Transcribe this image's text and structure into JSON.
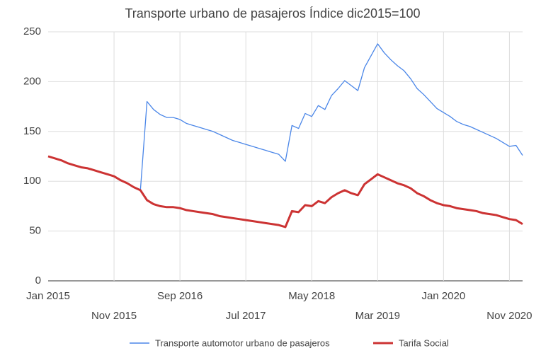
{
  "chart_data": {
    "type": "line",
    "title": "Transporte urbano de pasajeros Índice dic2015=100",
    "x": [
      "Jan 2015",
      "Feb 2015",
      "Mar 2015",
      "Apr 2015",
      "May 2015",
      "Jun 2015",
      "Jul 2015",
      "Aug 2015",
      "Sep 2015",
      "Oct 2015",
      "Nov 2015",
      "Dec 2015",
      "Jan 2016",
      "Feb 2016",
      "Mar 2016",
      "Apr 2016",
      "May 2016",
      "Jun 2016",
      "Jul 2016",
      "Aug 2016",
      "Sep 2016",
      "Oct 2016",
      "Nov 2016",
      "Dec 2016",
      "Jan 2017",
      "Feb 2017",
      "Mar 2017",
      "Apr 2017",
      "May 2017",
      "Jun 2017",
      "Jul 2017",
      "Aug 2017",
      "Sep 2017",
      "Oct 2017",
      "Nov 2017",
      "Dec 2017",
      "Jan 2018",
      "Feb 2018",
      "Mar 2018",
      "Apr 2018",
      "May 2018",
      "Jun 2018",
      "Jul 2018",
      "Aug 2018",
      "Sep 2018",
      "Oct 2018",
      "Nov 2018",
      "Dec 2018",
      "Jan 2019",
      "Feb 2019",
      "Mar 2019",
      "Apr 2019",
      "May 2019",
      "Jun 2019",
      "Jul 2019",
      "Aug 2019",
      "Sep 2019",
      "Oct 2019",
      "Nov 2019",
      "Dec 2019",
      "Jan 2020",
      "Feb 2020",
      "Mar 2020",
      "Apr 2020",
      "May 2020",
      "Jun 2020",
      "Jul 2020",
      "Aug 2020",
      "Sep 2020",
      "Oct 2020",
      "Nov 2020",
      "Dec 2020",
      "Jan 2021"
    ],
    "xticks": [
      "Jan 2015",
      "Nov 2015",
      "Sep 2016",
      "Jul 2017",
      "May 2018",
      "Mar 2019",
      "Jan 2020",
      "Nov 2020"
    ],
    "ylim": [
      0,
      250
    ],
    "yticks": [
      0,
      50,
      100,
      150,
      200,
      250
    ],
    "grid": true,
    "legend": "bottom",
    "series": [
      {
        "name": "Transporte automotor urbano de pasajeros",
        "color": "#4a86e8",
        "values": [
          null,
          null,
          null,
          null,
          null,
          null,
          null,
          null,
          null,
          null,
          null,
          null,
          null,
          null,
          91,
          180,
          172,
          167,
          164,
          164,
          162,
          158,
          156,
          154,
          152,
          150,
          147,
          144,
          141,
          139,
          137,
          135,
          133,
          131,
          129,
          127,
          120,
          156,
          153,
          168,
          165,
          176,
          172,
          186,
          193,
          201,
          196,
          191,
          214,
          226,
          238,
          229,
          222,
          216,
          211,
          203,
          193,
          187,
          180,
          173,
          169,
          165,
          160,
          157,
          155,
          152,
          149,
          146,
          143,
          139,
          135,
          136,
          126
        ]
      },
      {
        "name": "Tarifa Social",
        "color": "#cc3333",
        "values": [
          125,
          123,
          121,
          118,
          116,
          114,
          113,
          111,
          109,
          107,
          105,
          101,
          98,
          94,
          91,
          81,
          77,
          75,
          74,
          74,
          73,
          71,
          70,
          69,
          68,
          67,
          65,
          64,
          63,
          62,
          61,
          60,
          59,
          58,
          57,
          56,
          54,
          70,
          69,
          76,
          75,
          80,
          78,
          84,
          88,
          91,
          88,
          86,
          97,
          102,
          107,
          104,
          101,
          98,
          96,
          93,
          88,
          85,
          81,
          78,
          76,
          75,
          73,
          72,
          71,
          70,
          68,
          67,
          66,
          64,
          62,
          61,
          57
        ]
      }
    ]
  }
}
